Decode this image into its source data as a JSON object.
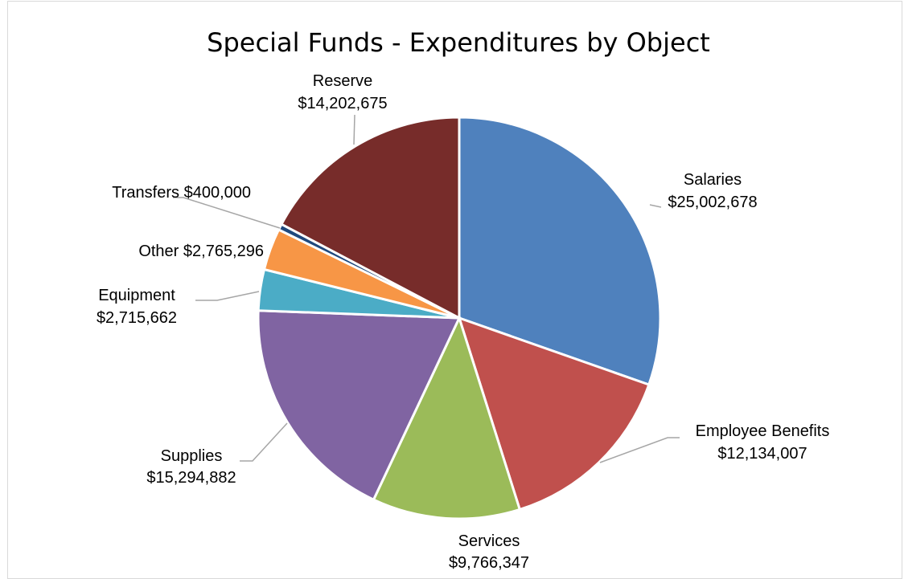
{
  "chart_data": {
    "type": "pie",
    "title": "Special Funds - Expenditures by Object",
    "slices": [
      {
        "name": "Salaries",
        "value": 25002678,
        "label_line1": "Salaries",
        "label_line2": "$25,002,678",
        "color": "#4f81bd"
      },
      {
        "name": "Employee Benefits",
        "value": 12134007,
        "label_line1": "Employee Benefits",
        "label_line2": "$12,134,007",
        "color": "#c0504d"
      },
      {
        "name": "Services",
        "value": 9766347,
        "label_line1": "Services",
        "label_line2": "$9,766,347",
        "color": "#9bbb59"
      },
      {
        "name": "Supplies",
        "value": 15294882,
        "label_line1": "Supplies",
        "label_line2": "$15,294,882",
        "color": "#8064a2"
      },
      {
        "name": "Equipment",
        "value": 2715662,
        "label_line1": "Equipment",
        "label_line2": "$2,715,662",
        "color": "#4bacc6"
      },
      {
        "name": "Other",
        "value": 2765296,
        "label_line1": "Other $2,765,296",
        "label_line2": "",
        "color": "#f79646"
      },
      {
        "name": "Transfers",
        "value": 400000,
        "label_line1": "Transfers $400,000",
        "label_line2": "",
        "color": "#1f497d"
      },
      {
        "name": "Reserve",
        "value": 14202675,
        "label_line1": "Reserve",
        "label_line2": "$14,202,675",
        "color": "#772c2a"
      }
    ],
    "start_angle_deg": 0,
    "direction": "clockwise",
    "legend": "none",
    "data_labels": "outside-with-leader-lines"
  }
}
